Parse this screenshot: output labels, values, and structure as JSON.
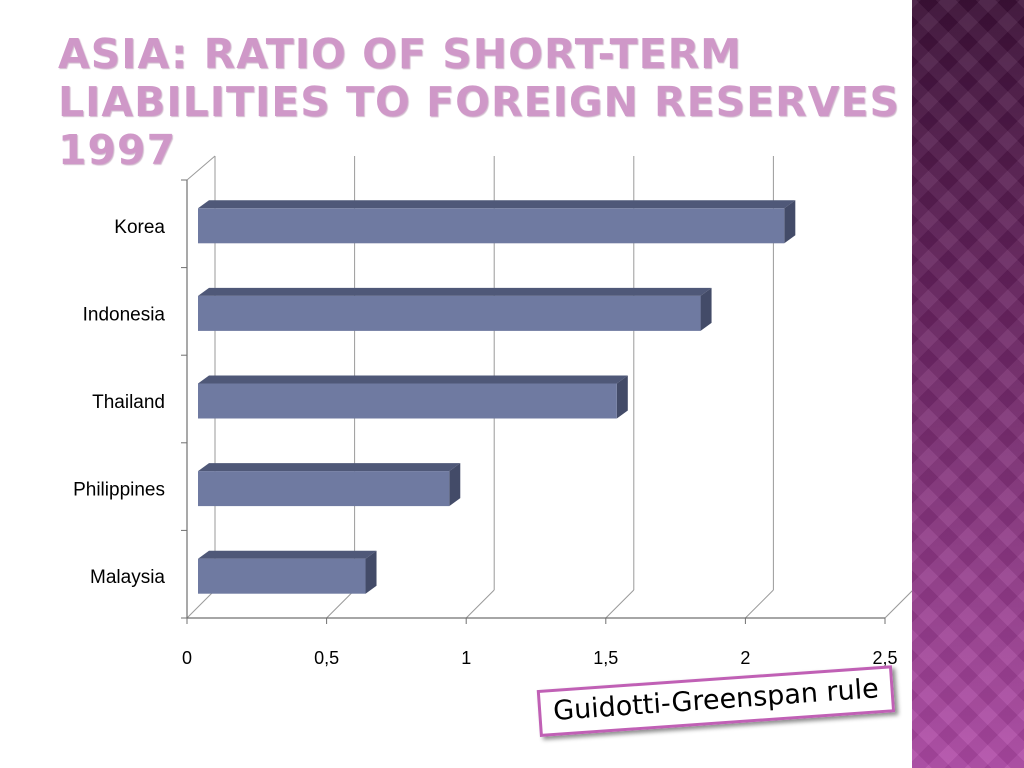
{
  "slide": {
    "title": "Asia: Ratio of short-term liabilities to foreign reserves 1997",
    "callout": "Guidotti-Greenspan rule"
  },
  "colors": {
    "bar_front": "#6f7aa1",
    "bar_top": "#4f5878",
    "bar_side": "#434b68",
    "title": "#cf98c8",
    "accent": "#c060b5"
  },
  "chart_data": {
    "type": "bar",
    "orientation": "horizontal",
    "categories": [
      "Korea",
      "Indonesia",
      "Thailand",
      "Philippines",
      "Malaysia"
    ],
    "values": [
      2.1,
      1.8,
      1.5,
      0.9,
      0.6
    ],
    "xticks": [
      "0",
      "0,5",
      "1",
      "1,5",
      "2",
      "2,5"
    ],
    "xlim": [
      0,
      2.5
    ],
    "grid": true,
    "legend": "none"
  }
}
